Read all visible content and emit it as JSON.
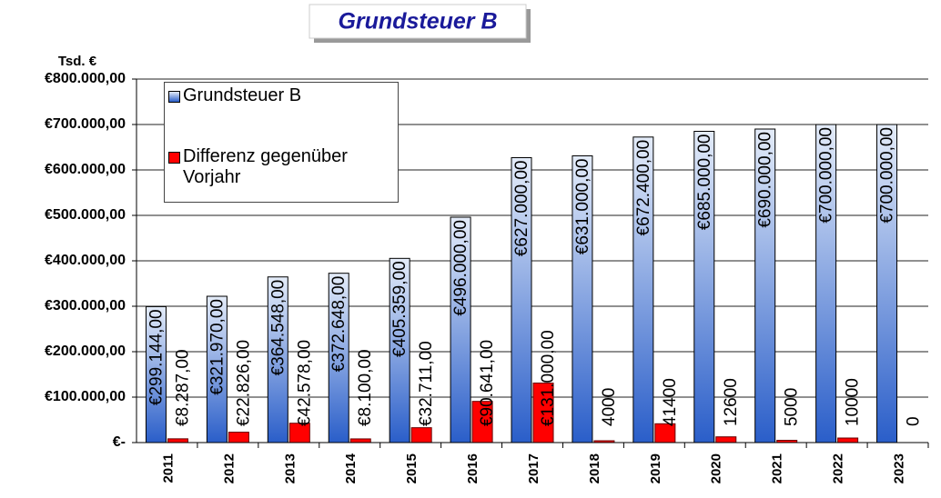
{
  "chart_data": {
    "type": "bar",
    "title": "Grundsteuer B",
    "y_label": "Tsd. €",
    "categories": [
      "2011",
      "2012",
      "2013",
      "2014",
      "2015",
      "2016",
      "2017",
      "2018",
      "2019",
      "2020",
      "2021",
      "2022",
      "2023"
    ],
    "series": [
      {
        "name": "Grundsteuer B",
        "color": "#2a5ec9",
        "values": [
          299144,
          321970,
          364548,
          372648,
          405359,
          496000,
          627000,
          631000,
          672400,
          685000,
          690000,
          700000,
          700000
        ],
        "value_labels": [
          "€299.144,00",
          "€321.970,00",
          "€364.548,00",
          "€372.648,00",
          "€405.359,00",
          "€496.000,00",
          "€627.000,00",
          "€631.000,00",
          "€672.400,00",
          "€685.000,00",
          "€690.000,00",
          "€700.000,00",
          "€700.000,00"
        ]
      },
      {
        "name": "Differenz gegenüber Vorjahr",
        "color": "#ff0000",
        "values": [
          8287,
          22826,
          42578,
          8100,
          32711,
          90641,
          131000,
          4000,
          41400,
          12600,
          5000,
          10000,
          0
        ],
        "value_labels": [
          "€8.287,00",
          "€22.826,00",
          "€42.578,00",
          "€8.100,00",
          "€32.711,00",
          "€90.641,00",
          "€131.000,00",
          "4000",
          "41400",
          "12600",
          "5000",
          "10000",
          "0"
        ]
      }
    ],
    "ylim": [
      0,
      800000
    ],
    "yticks": [
      {
        "value": 0,
        "label": "€-"
      },
      {
        "value": 100000,
        "label": "€100.000,00"
      },
      {
        "value": 200000,
        "label": "€200.000,00"
      },
      {
        "value": 300000,
        "label": "€300.000,00"
      },
      {
        "value": 400000,
        "label": "€400.000,00"
      },
      {
        "value": 500000,
        "label": "€500.000,00"
      },
      {
        "value": 600000,
        "label": "€600.000,00"
      },
      {
        "value": 700000,
        "label": "€700.000,00"
      },
      {
        "value": 800000,
        "label": "€800.000,00"
      }
    ],
    "grid": true
  }
}
